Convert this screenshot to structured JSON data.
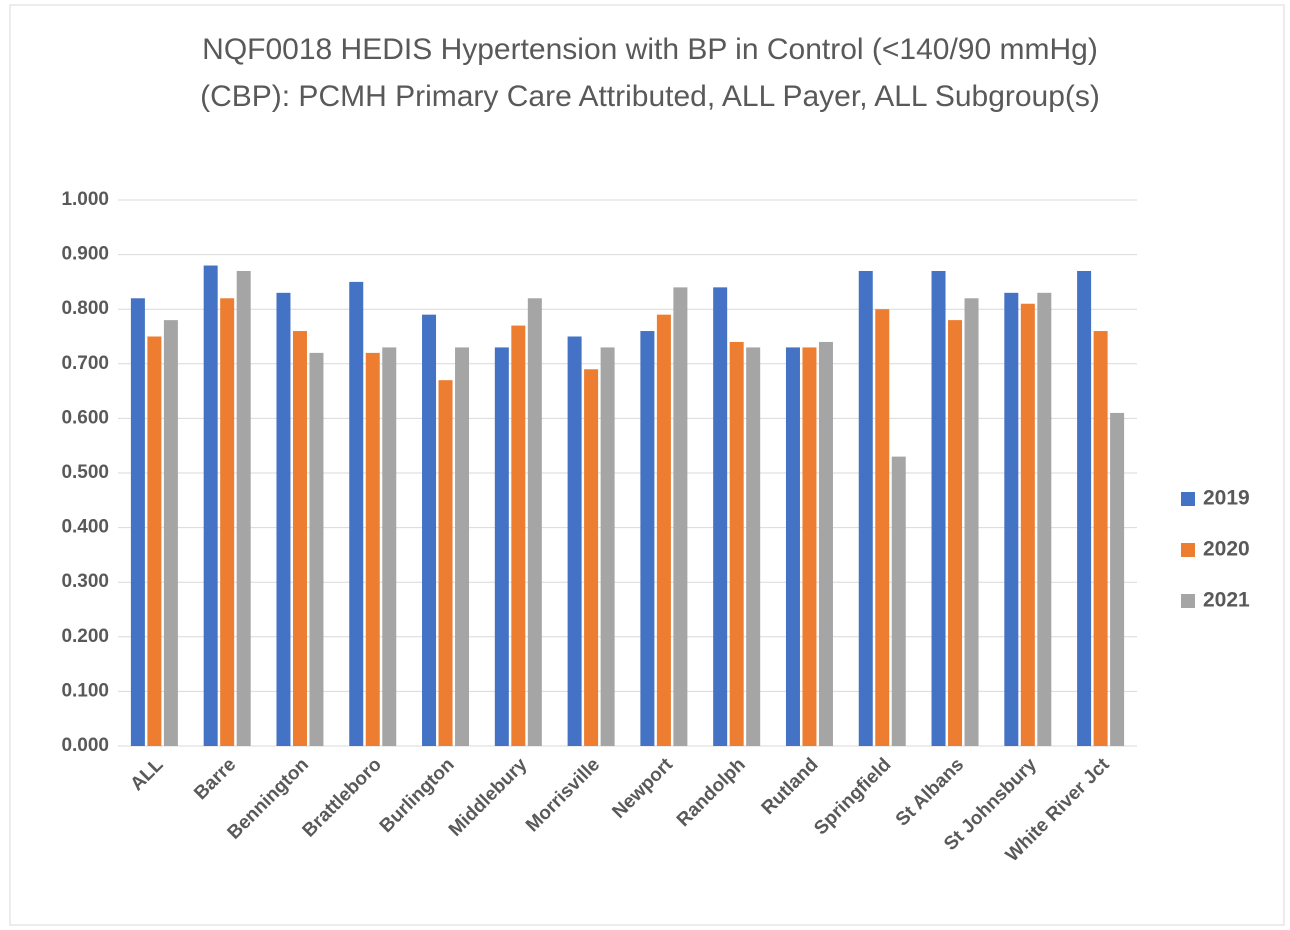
{
  "chart_data": {
    "type": "bar",
    "title": "NQF0018 HEDIS Hypertension with BP in Control (<140/90 mmHg) (CBP): PCMH Primary Care Attributed, ALL Payer, ALL Subgroup(s)",
    "categories": [
      "ALL",
      "Barre",
      "Bennington",
      "Brattleboro",
      "Burlington",
      "Middlebury",
      "Morrisville",
      "Newport",
      "Randolph",
      "Rutland",
      "Springfield",
      "St Albans",
      "St Johnsbury",
      "White River Jct"
    ],
    "series": [
      {
        "name": "2019",
        "color": "#4472c4",
        "values": [
          0.82,
          0.88,
          0.83,
          0.85,
          0.79,
          0.73,
          0.75,
          0.76,
          0.84,
          0.73,
          0.87,
          0.87,
          0.83,
          0.87
        ]
      },
      {
        "name": "2020",
        "color": "#ed7d31",
        "values": [
          0.75,
          0.82,
          0.76,
          0.72,
          0.67,
          0.77,
          0.69,
          0.79,
          0.74,
          0.73,
          0.8,
          0.78,
          0.81,
          0.76
        ]
      },
      {
        "name": "2021",
        "color": "#a5a5a5",
        "values": [
          0.78,
          0.87,
          0.72,
          0.73,
          0.73,
          0.82,
          0.73,
          0.84,
          0.73,
          0.74,
          0.53,
          0.82,
          0.83,
          0.61
        ]
      }
    ],
    "ylim": [
      0,
      1
    ],
    "yticks": [
      {
        "value": 0,
        "label": "0.000"
      },
      {
        "value": 0.1,
        "label": "0.100"
      },
      {
        "value": 0.2,
        "label": "0.200"
      },
      {
        "value": 0.3,
        "label": "0.300"
      },
      {
        "value": 0.4,
        "label": "0.400"
      },
      {
        "value": 0.5,
        "label": "0.500"
      },
      {
        "value": 0.6,
        "label": "0.600"
      },
      {
        "value": 0.7,
        "label": "0.700"
      },
      {
        "value": 0.8,
        "label": "0.800"
      },
      {
        "value": 0.9,
        "label": "0.900"
      },
      {
        "value": 1,
        "label": "1.000"
      }
    ],
    "grid": true,
    "legend": "right"
  }
}
